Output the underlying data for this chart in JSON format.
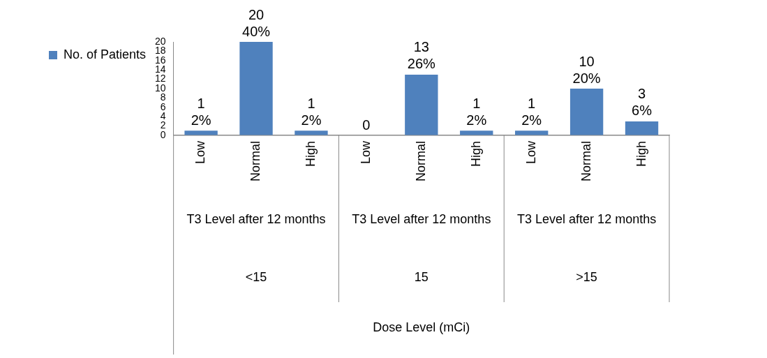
{
  "chart_data": {
    "type": "bar",
    "categories": [
      "Low",
      "Normal",
      "High",
      "Low",
      "Normal",
      "High",
      "Low",
      "Normal",
      "High"
    ],
    "series": [
      {
        "name": "No. of Patients",
        "color": "#4f81bd",
        "values": [
          1,
          20,
          1,
          0,
          13,
          1,
          1,
          10,
          3
        ]
      }
    ],
    "value_labels": [
      "1\n2%",
      "20\n40%",
      "1\n2%",
      "0",
      "13\n26%",
      "1\n2%",
      "1\n2%",
      "10\n20%",
      "3\n6%"
    ],
    "ylim": [
      0,
      20
    ],
    "yticks": [
      0,
      2,
      4,
      6,
      8,
      10,
      12,
      14,
      16,
      18,
      20
    ],
    "annotations": [
      "T3 Level after 12 months",
      "T3 Level after 12 months",
      "T3 Level after 12 months",
      "<15",
      "15",
      ">15",
      "Dose Level (mCi)"
    ],
    "grid": false,
    "legend": "left"
  }
}
